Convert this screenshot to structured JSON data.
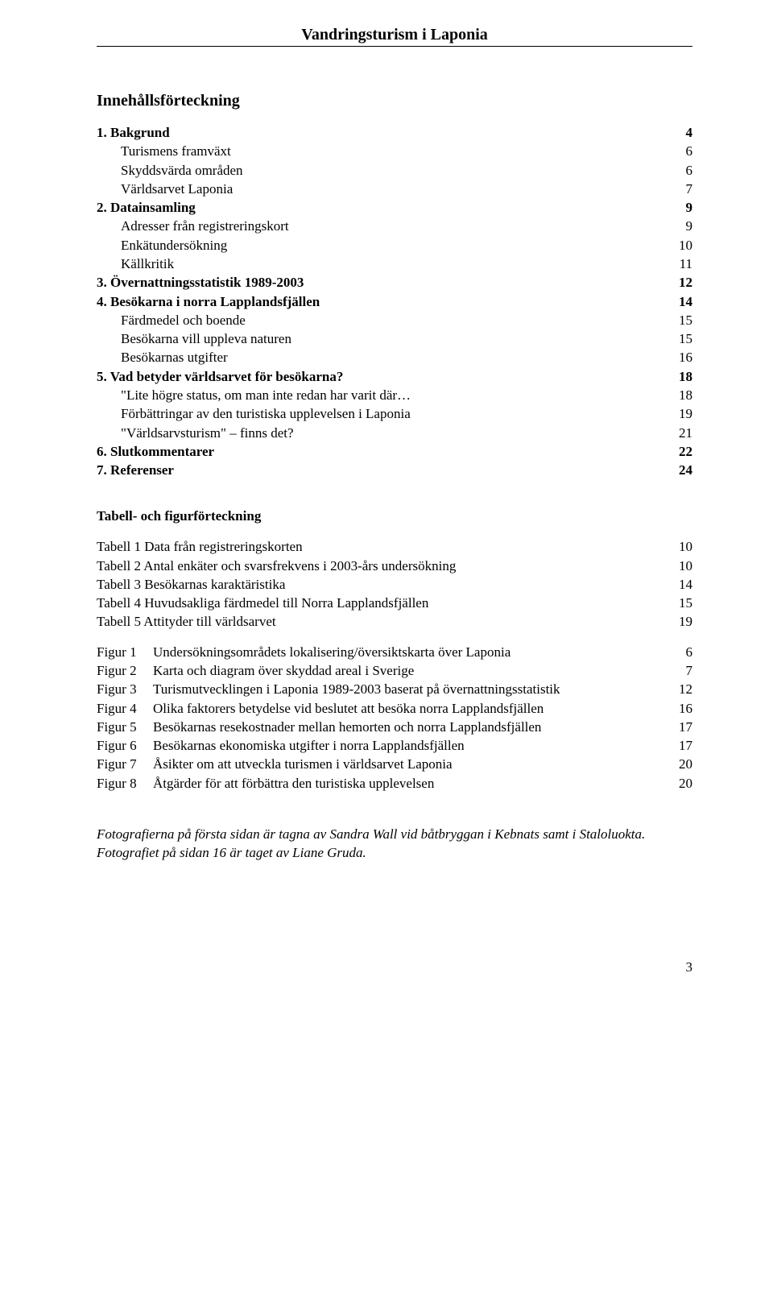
{
  "header_title": "Vandringsturism i Laponia",
  "toc_heading": "Innehållsförteckning",
  "toc": [
    {
      "level": "bold",
      "label": "1. Bakgrund",
      "page": "4"
    },
    {
      "level": "sub",
      "label": "Turismens framväxt",
      "page": "6"
    },
    {
      "level": "sub",
      "label": "Skyddsvärda områden",
      "page": "6"
    },
    {
      "level": "sub",
      "label": "Världsarvet Laponia",
      "page": "7"
    },
    {
      "level": "bold",
      "label": "2. Datainsamling",
      "page": "9"
    },
    {
      "level": "sub",
      "label": "Adresser från registreringskort",
      "page": "9"
    },
    {
      "level": "sub",
      "label": "Enkätundersökning",
      "page": "10"
    },
    {
      "level": "sub",
      "label": "Källkritik",
      "page": "11"
    },
    {
      "level": "bold",
      "label": "3. Övernattningsstatistik 1989-2003",
      "page": "12"
    },
    {
      "level": "bold",
      "label": "4. Besökarna i norra Lapplandsfjällen",
      "page": "14"
    },
    {
      "level": "sub",
      "label": "Färdmedel och boende",
      "page": "15"
    },
    {
      "level": "sub",
      "label": "Besökarna vill uppleva naturen",
      "page": "15"
    },
    {
      "level": "sub",
      "label": "Besökarnas utgifter",
      "page": "16"
    },
    {
      "level": "bold",
      "label": "5. Vad betyder världsarvet för besökarna?",
      "page": "18"
    },
    {
      "level": "sub",
      "label": "\"Lite högre status, om man inte redan har varit där…",
      "page": "18"
    },
    {
      "level": "sub",
      "label": "Förbättringar av den turistiska upplevelsen i Laponia",
      "page": "19"
    },
    {
      "level": "sub",
      "label": "\"Världsarvsturism\" – finns det?",
      "page": "21"
    },
    {
      "level": "bold",
      "label": "6. Slutkommentarer",
      "page": "22"
    },
    {
      "level": "bold",
      "label": "7. Referenser",
      "page": "24"
    }
  ],
  "tbl_heading": "Tabell- och figurförteckning",
  "tables": [
    {
      "label": "Tabell 1 Data från registreringskorten",
      "page": "10"
    },
    {
      "label": "Tabell 2 Antal enkäter och svarsfrekvens i 2003-års undersökning",
      "page": "10"
    },
    {
      "label": "Tabell 3 Besökarnas karaktäristika",
      "page": "14"
    },
    {
      "label": "Tabell 4 Huvudsakliga färdmedel till Norra Lapplandsfjällen",
      "page": "15"
    },
    {
      "label": "Tabell 5 Attityder till världsarvet",
      "page": "19"
    }
  ],
  "figures": [
    {
      "key": "Figur 1",
      "label": "Undersökningsområdets lokalisering/översiktskarta över Laponia",
      "page": "6"
    },
    {
      "key": "Figur 2",
      "label": "Karta och diagram över skyddad areal i Sverige",
      "page": "7"
    },
    {
      "key": "Figur 3",
      "label": "Turismutvecklingen i Laponia 1989-2003 baserat på övernattningsstatistik",
      "page": "12"
    },
    {
      "key": "Figur 4",
      "label": "Olika faktorers betydelse vid beslutet att besöka norra Lapplandsfjällen",
      "page": "16"
    },
    {
      "key": "Figur 5",
      "label": "Besökarnas resekostnader mellan hemorten och norra Lapplandsfjällen",
      "page": "17"
    },
    {
      "key": "Figur 6",
      "label": "Besökarnas ekonomiska utgifter i norra Lapplandsfjällen",
      "page": "17"
    },
    {
      "key": "Figur 7",
      "label": "Åsikter om att utveckla turismen i världsarvet Laponia",
      "page": "20"
    },
    {
      "key": "Figur 8",
      "label": "Åtgärder för att förbättra den turistiska upplevelsen",
      "page": "20"
    }
  ],
  "footnote": "Fotografierna på första sidan är tagna av Sandra Wall vid båtbryggan i Kebnats samt i Staloluokta. Fotografiet på sidan 16 är taget av Liane Gruda.",
  "page_number": "3"
}
